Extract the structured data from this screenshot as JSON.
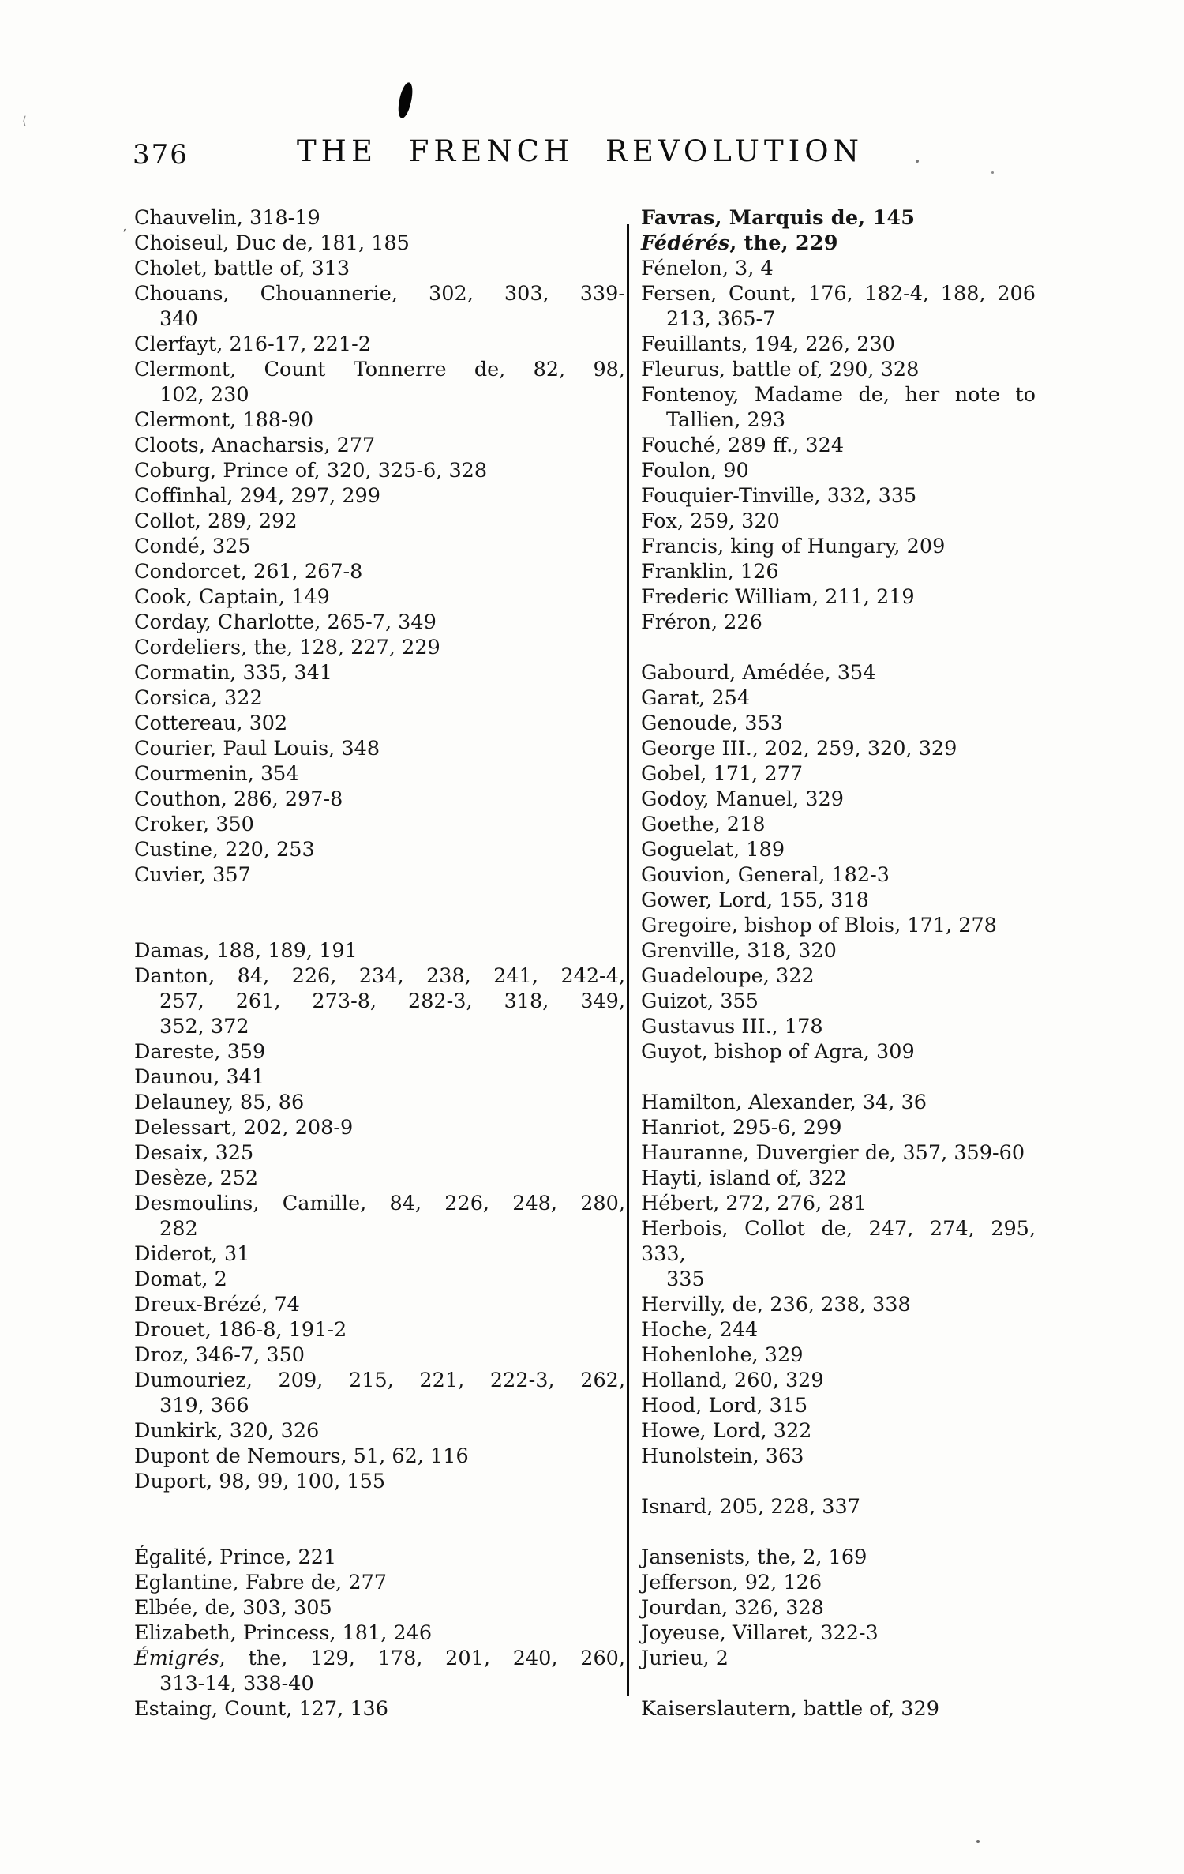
{
  "page": {
    "number": "376",
    "title": "THE FRENCH REVOLUTION"
  },
  "index": {
    "left_column": [
      {
        "lines": [
          "Chauvelin, 318-19"
        ]
      },
      {
        "lines": [
          "Choiseul, Duc de, 181, 185"
        ]
      },
      {
        "lines": [
          "Cholet, battle of, 313"
        ]
      },
      {
        "lines": [
          "Chouans, Chouannerie, 302, 303, 339-",
          "340"
        ]
      },
      {
        "lines": [
          "Clerfayt, 216-17, 221-2"
        ]
      },
      {
        "lines": [
          "Clermont, Count Tonnerre de, 82, 98,",
          "102, 230"
        ]
      },
      {
        "lines": [
          "Clermont, 188-90"
        ]
      },
      {
        "lines": [
          "Cloots, Anacharsis, 277"
        ]
      },
      {
        "lines": [
          "Coburg, Prince of, 320, 325-6, 328"
        ]
      },
      {
        "lines": [
          "Coffinhal, 294, 297, 299"
        ]
      },
      {
        "lines": [
          "Collot, 289, 292"
        ]
      },
      {
        "lines": [
          "Condé, 325"
        ]
      },
      {
        "lines": [
          "Condorcet, 261, 267-8"
        ]
      },
      {
        "lines": [
          "Cook, Captain, 149"
        ]
      },
      {
        "lines": [
          "Corday, Charlotte, 265-7, 349"
        ]
      },
      {
        "lines": [
          "Cordeliers, the, 128, 227, 229"
        ]
      },
      {
        "lines": [
          "Cormatin, 335, 341"
        ]
      },
      {
        "lines": [
          "Corsica, 322"
        ]
      },
      {
        "lines": [
          "Cottereau, 302"
        ]
      },
      {
        "lines": [
          "Courier, Paul Louis, 348"
        ]
      },
      {
        "lines": [
          "Courmenin, 354"
        ]
      },
      {
        "lines": [
          "Couthon, 286, 297-8"
        ]
      },
      {
        "lines": [
          "Croker, 350"
        ]
      },
      {
        "lines": [
          "Custine, 220, 253"
        ]
      },
      {
        "lines": [
          "Cuvier, 357"
        ]
      },
      {
        "gap": 2,
        "lines": [
          "Damas, 188, 189, 191"
        ]
      },
      {
        "lines": [
          "Danton, 84, 226, 234, 238, 241, 242-4,",
          "257, 261, 273-8, 282-3, 318, 349,",
          "352, 372"
        ]
      },
      {
        "lines": [
          "Dareste, 359"
        ]
      },
      {
        "lines": [
          "Daunou, 341"
        ]
      },
      {
        "lines": [
          "Delauney, 85, 86"
        ]
      },
      {
        "lines": [
          "Delessart, 202, 208-9"
        ]
      },
      {
        "lines": [
          "Desaix, 325"
        ]
      },
      {
        "lines": [
          "Desèze, 252"
        ]
      },
      {
        "lines": [
          "Desmoulins, Camille, 84, 226, 248, 280,",
          "282"
        ]
      },
      {
        "lines": [
          "Diderot, 31"
        ]
      },
      {
        "lines": [
          "Domat, 2"
        ]
      },
      {
        "lines": [
          "Dreux-Brézé, 74"
        ]
      },
      {
        "lines": [
          "Drouet, 186-8, 191-2"
        ]
      },
      {
        "lines": [
          "Droz, 346-7, 350"
        ]
      },
      {
        "lines": [
          "Dumouriez, 209, 215, 221, 222-3, 262,",
          "319, 366"
        ]
      },
      {
        "lines": [
          "Dunkirk, 320, 326"
        ]
      },
      {
        "lines": [
          "Dupont de Nemours, 51, 62, 116"
        ]
      },
      {
        "lines": [
          "Duport, 98, 99, 100, 155"
        ]
      },
      {
        "gap": 2,
        "lines": [
          "Égalité, Prince, 221"
        ]
      },
      {
        "lines": [
          "Eglantine, Fabre de, 277"
        ]
      },
      {
        "lines": [
          "Elbée, de, 303, 305"
        ]
      },
      {
        "lines": [
          "Elizabeth, Princess, 181, 246"
        ]
      },
      {
        "italic_head": true,
        "lines": [
          "Émigrés, the, 129, 178, 201, 240, 260,",
          "313-14, 338-40"
        ]
      },
      {
        "lines": [
          "Estaing, Count, 127, 136"
        ]
      }
    ],
    "right_column": [
      {
        "heavy": true,
        "lines": [
          "Favras, Marquis de, 145"
        ]
      },
      {
        "heavy": true,
        "italic_head": true,
        "lines": [
          "Fédérés, the, 229"
        ]
      },
      {
        "lines": [
          "Fénelon, 3, 4"
        ]
      },
      {
        "lines": [
          "Fersen, Count, 176, 182-4, 188, 206",
          "213, 365-7"
        ]
      },
      {
        "lines": [
          "Feuillants, 194, 226, 230"
        ]
      },
      {
        "lines": [
          "Fleurus, battle of, 290, 328"
        ]
      },
      {
        "lines": [
          "Fontenoy, Madame de, her note to",
          "Tallien, 293"
        ]
      },
      {
        "lines": [
          "Fouché, 289 ff., 324"
        ]
      },
      {
        "lines": [
          "Foulon, 90"
        ]
      },
      {
        "lines": [
          "Fouquier-Tinville, 332, 335"
        ]
      },
      {
        "lines": [
          "Fox, 259, 320"
        ]
      },
      {
        "lines": [
          "Francis, king of Hungary, 209"
        ]
      },
      {
        "lines": [
          "Franklin, 126"
        ]
      },
      {
        "lines": [
          "Frederic William, 211, 219"
        ]
      },
      {
        "lines": [
          "Fréron, 226"
        ]
      },
      {
        "gap": 1,
        "lines": [
          "Gabourd, Amédée, 354"
        ]
      },
      {
        "lines": [
          "Garat, 254"
        ]
      },
      {
        "lines": [
          "Genoude, 353"
        ]
      },
      {
        "lines": [
          "George III., 202, 259, 320, 329"
        ]
      },
      {
        "lines": [
          "Gobel, 171, 277"
        ]
      },
      {
        "lines": [
          "Godoy, Manuel, 329"
        ]
      },
      {
        "lines": [
          "Goethe, 218"
        ]
      },
      {
        "lines": [
          "Goguelat, 189"
        ]
      },
      {
        "lines": [
          "Gouvion, General, 182-3"
        ]
      },
      {
        "lines": [
          "Gower, Lord, 155, 318"
        ]
      },
      {
        "lines": [
          "Gregoire, bishop of Blois, 171, 278"
        ]
      },
      {
        "lines": [
          "Grenville, 318, 320"
        ]
      },
      {
        "lines": [
          "Guadeloupe, 322"
        ]
      },
      {
        "lines": [
          "Guizot, 355"
        ]
      },
      {
        "lines": [
          "Gustavus III., 178"
        ]
      },
      {
        "lines": [
          "Guyot, bishop of Agra, 309"
        ]
      },
      {
        "gap": 1,
        "lines": [
          "Hamilton, Alexander, 34, 36"
        ]
      },
      {
        "lines": [
          "Hanriot, 295-6, 299"
        ]
      },
      {
        "lines": [
          "Hauranne, Duvergier de, 357, 359-60"
        ]
      },
      {
        "lines": [
          "Hayti, island of, 322"
        ]
      },
      {
        "lines": [
          "Hébert, 272, 276, 281"
        ]
      },
      {
        "lines": [
          "Herbois, Collot de, 247, 274, 295, 333,",
          "335"
        ]
      },
      {
        "lines": [
          "Hervilly, de, 236, 238, 338"
        ]
      },
      {
        "lines": [
          "Hoche, 244"
        ]
      },
      {
        "lines": [
          "Hohenlohe, 329"
        ]
      },
      {
        "lines": [
          "Holland, 260, 329"
        ]
      },
      {
        "lines": [
          "Hood, Lord, 315"
        ]
      },
      {
        "lines": [
          "Howe, Lord, 322"
        ]
      },
      {
        "lines": [
          "Hunolstein, 363"
        ]
      },
      {
        "gap": 1,
        "lines": [
          "Isnard, 205, 228, 337"
        ]
      },
      {
        "gap": 1,
        "lines": [
          "Jansenists, the, 2, 169"
        ]
      },
      {
        "lines": [
          "Jefferson, 92, 126"
        ]
      },
      {
        "lines": [
          "Jourdan, 326, 328"
        ]
      },
      {
        "lines": [
          "Joyeuse, Villaret, 322-3"
        ]
      },
      {
        "lines": [
          "Jurieu, 2"
        ]
      },
      {
        "gap": 1,
        "lines": [
          "Kaiserslautern, battle of, 329"
        ]
      }
    ]
  }
}
